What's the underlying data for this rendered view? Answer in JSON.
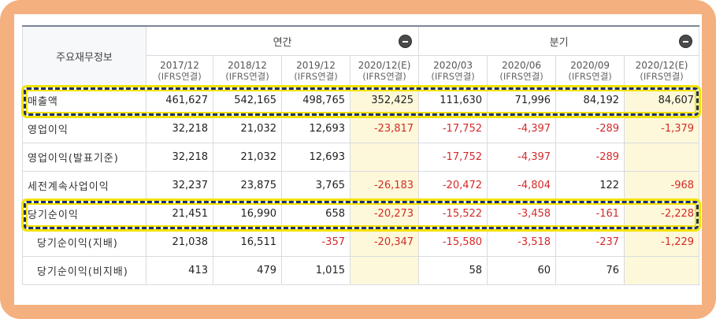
{
  "table": {
    "label_header": "주요재무정보",
    "groups": [
      {
        "label": "연간",
        "span": 4
      },
      {
        "label": "분기",
        "span": 4
      }
    ],
    "periods": [
      {
        "label": "2017/12",
        "sub": "(IFRS연결)",
        "estimate": false
      },
      {
        "label": "2018/12",
        "sub": "(IFRS연결)",
        "estimate": false
      },
      {
        "label": "2019/12",
        "sub": "(IFRS연결)",
        "estimate": false
      },
      {
        "label": "2020/12(E)",
        "sub": "(IFRS연결)",
        "estimate": true
      },
      {
        "label": "2020/03",
        "sub": "(IFRS연결)",
        "estimate": false
      },
      {
        "label": "2020/06",
        "sub": "(IFRS연결)",
        "estimate": false
      },
      {
        "label": "2020/09",
        "sub": "(IFRS연결)",
        "estimate": false
      },
      {
        "label": "2020/12(E)",
        "sub": "(IFRS연결)",
        "estimate": true
      }
    ],
    "rows": [
      {
        "label": "매출액",
        "indent": false,
        "highlight": true,
        "values": [
          "461,627",
          "542,165",
          "498,765",
          "352,425",
          "111,630",
          "71,996",
          "84,192",
          "84,607"
        ]
      },
      {
        "label": "영업이익",
        "indent": false,
        "highlight": false,
        "values": [
          "32,218",
          "21,032",
          "12,693",
          "-23,817",
          "-17,752",
          "-4,397",
          "-289",
          "-1,379"
        ]
      },
      {
        "label": "영업이익(발표기준)",
        "indent": false,
        "highlight": false,
        "values": [
          "32,218",
          "21,032",
          "12,693",
          "",
          "-17,752",
          "-4,397",
          "-289",
          ""
        ]
      },
      {
        "label": "세전계속사업이익",
        "indent": false,
        "highlight": false,
        "values": [
          "32,237",
          "23,875",
          "3,765",
          "-26,183",
          "-20,472",
          "-4,804",
          "122",
          "-968"
        ]
      },
      {
        "label": "당기순이익",
        "indent": false,
        "highlight": true,
        "values": [
          "21,451",
          "16,990",
          "658",
          "-20,273",
          "-15,522",
          "-3,458",
          "-161",
          "-2,228"
        ]
      },
      {
        "label": "당기순이익(지배)",
        "indent": true,
        "highlight": false,
        "values": [
          "21,038",
          "16,511",
          "-357",
          "-20,347",
          "-15,580",
          "-3,518",
          "-237",
          "-1,229"
        ]
      },
      {
        "label": "당기순이익(비지배)",
        "indent": true,
        "highlight": false,
        "values": [
          "413",
          "479",
          "1,015",
          "",
          "58",
          "60",
          "76",
          ""
        ]
      }
    ]
  },
  "colors": {
    "frame": "#f5b07f",
    "negative": "#d42a2a",
    "estimate_bg": "#fdf8d9",
    "highlight_dash": "#1e2f6e",
    "highlight_glow": "#f2e200"
  },
  "icons": {
    "collapse_annual": "minus-circle-icon",
    "collapse_quarter": "minus-circle-icon"
  }
}
